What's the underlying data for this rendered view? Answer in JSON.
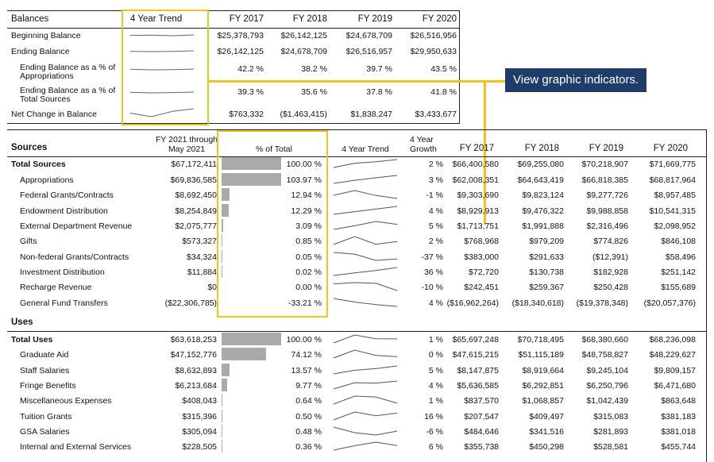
{
  "balances": {
    "title": "Balances",
    "trend_header": "4 Year Trend",
    "years": [
      "FY 2017",
      "FY 2018",
      "FY 2019",
      "FY 2020"
    ],
    "rows": [
      {
        "label": "Beginning Balance",
        "values": [
          "$25,378,793",
          "$26,142,125",
          "$24,678,709",
          "$26,516,956"
        ],
        "trend": [
          25378793,
          26142125,
          24678709,
          26516956
        ]
      },
      {
        "label": "Ending Balance",
        "values": [
          "$26,142,125",
          "$24,678,709",
          "$26,516,957",
          "$29,950,633"
        ],
        "trend": [
          26142125,
          24678709,
          26516957,
          29950633
        ]
      },
      {
        "label": "Ending Balance as a % of Appropriations",
        "values": [
          "42.2 %",
          "38.2 %",
          "39.7 %",
          "43.5 %"
        ],
        "trend": [
          42.2,
          38.2,
          39.7,
          43.5
        ]
      },
      {
        "label": "Ending Balance as a % of Total Sources",
        "values": [
          "39.3 %",
          "35.6 %",
          "37.8 %",
          "41.8 %"
        ],
        "trend": [
          39.3,
          35.6,
          37.8,
          41.8
        ]
      },
      {
        "label": "Net Change in Balance",
        "values": [
          "$763,332",
          "($1,463,415)",
          "$1,838,247",
          "$3,433,677"
        ],
        "trend": [
          763332,
          -1463415,
          1838247,
          3433677
        ]
      }
    ]
  },
  "callout": {
    "text": "View graphic indicators."
  },
  "detail": {
    "col_ytd": "FY 2021 through May 2021",
    "col_pct": "% of Total",
    "col_trend": "4 Year Trend",
    "col_growth": "4 Year Growth",
    "years": [
      "FY 2017",
      "FY 2018",
      "FY 2019",
      "FY 2020"
    ],
    "sources": {
      "title": "Sources",
      "rows": [
        {
          "label": "Total Sources",
          "ytd": "$67,172,411",
          "pct": "100.00 %",
          "pct_value": 100.0,
          "growth": "2 %",
          "values": [
            "$66,400,580",
            "$69,255,080",
            "$70,218,907",
            "$71,669,775"
          ],
          "trend": [
            66400580,
            69255080,
            70218907,
            71669775
          ]
        },
        {
          "label": "Appropriations",
          "ytd": "$69,836,585",
          "pct": "103.97 %",
          "pct_value": 103.97,
          "growth": "3 %",
          "values": [
            "$62,008,351",
            "$64,643,419",
            "$66,818,385",
            "$68,817,964"
          ],
          "trend": [
            62008351,
            64643419,
            66818385,
            68817964
          ]
        },
        {
          "label": "Federal Grants/Contracts",
          "ytd": "$8,692,450",
          "pct": "12.94 %",
          "pct_value": 12.94,
          "growth": "-1 %",
          "values": [
            "$9,303,690",
            "$9,823,124",
            "$9,277,726",
            "$8,957,485"
          ],
          "trend": [
            9303690,
            9823124,
            9277726,
            8957485
          ]
        },
        {
          "label": "Endowment Distribution",
          "ytd": "$8,254,849",
          "pct": "12.29 %",
          "pct_value": 12.29,
          "growth": "4 %",
          "values": [
            "$8,929,913",
            "$9,476,322",
            "$9,988,858",
            "$10,541,315"
          ],
          "trend": [
            8929913,
            9476322,
            9988858,
            10541315
          ]
        },
        {
          "label": "External Department Revenue",
          "ytd": "$2,075,777",
          "pct": "3.09 %",
          "pct_value": 3.09,
          "growth": "5 %",
          "values": [
            "$1,713,751",
            "$1,991,888",
            "$2,316,496",
            "$2,098,952"
          ],
          "trend": [
            1713751,
            1991888,
            2316496,
            2098952
          ]
        },
        {
          "label": "Gifts",
          "ytd": "$573,327",
          "pct": "0.85 %",
          "pct_value": 0.85,
          "growth": "2 %",
          "values": [
            "$768,968",
            "$979,209",
            "$774,826",
            "$846,108"
          ],
          "trend": [
            768968,
            979209,
            774826,
            846108
          ]
        },
        {
          "label": "Non-federal Grants/Contracts",
          "ytd": "$34,324",
          "pct": "0.05 %",
          "pct_value": 0.05,
          "growth": "-37 %",
          "values": [
            "$383,000",
            "$291,633",
            "($12,391)",
            "$58,496"
          ],
          "trend": [
            383000,
            291633,
            -12391,
            58496
          ]
        },
        {
          "label": "Investment Distribution",
          "ytd": "$11,884",
          "pct": "0.02 %",
          "pct_value": 0.02,
          "growth": "36 %",
          "values": [
            "$72,720",
            "$130,738",
            "$182,928",
            "$251,142"
          ],
          "trend": [
            72720,
            130738,
            182928,
            251142
          ]
        },
        {
          "label": "Recharge Revenue",
          "ytd": "$0",
          "pct": "0.00 %",
          "pct_value": 0.0,
          "growth": "-10 %",
          "values": [
            "$242,451",
            "$259,367",
            "$250,428",
            "$155,689"
          ],
          "trend": [
            242451,
            259367,
            250428,
            155689
          ]
        },
        {
          "label": "General Fund Transfers",
          "ytd": "($22,306,785)",
          "pct": "-33.21 %",
          "pct_value": -33.21,
          "growth": "4 %",
          "values": [
            "($16,962,264)",
            "($18,340,618)",
            "($19,378,348)",
            "($20,057,376)"
          ],
          "trend": [
            -16962264,
            -18340618,
            -19378348,
            -20057376
          ]
        }
      ]
    },
    "uses": {
      "title": "Uses",
      "rows": [
        {
          "label": "Total Uses",
          "ytd": "$63,618,253",
          "pct": "100.00 %",
          "pct_value": 100.0,
          "growth": "1 %",
          "values": [
            "$65,697,248",
            "$70,718,495",
            "$68,380,660",
            "$68,236,098"
          ],
          "trend": [
            65697248,
            70718495,
            68380660,
            68236098
          ]
        },
        {
          "label": "Graduate Aid",
          "ytd": "$47,152,776",
          "pct": "74.12 %",
          "pct_value": 74.12,
          "growth": "0 %",
          "values": [
            "$47,615,215",
            "$51,115,189",
            "$48,758,827",
            "$48,229,627"
          ],
          "trend": [
            47615215,
            51115189,
            48758827,
            48229627
          ]
        },
        {
          "label": "Staff Salaries",
          "ytd": "$8,632,893",
          "pct": "13.57 %",
          "pct_value": 13.57,
          "growth": "5 %",
          "values": [
            "$8,147,875",
            "$8,919,664",
            "$9,245,104",
            "$9,809,157"
          ],
          "trend": [
            8147875,
            8919664,
            9245104,
            9809157
          ]
        },
        {
          "label": "Fringe Benefits",
          "ytd": "$6,213,684",
          "pct": "9.77 %",
          "pct_value": 9.77,
          "growth": "4 %",
          "values": [
            "$5,636,585",
            "$6,292,851",
            "$6,250,796",
            "$6,471,680"
          ],
          "trend": [
            5636585,
            6292851,
            6250796,
            6471680
          ]
        },
        {
          "label": "Miscellaneous Expenses",
          "ytd": "$408,043",
          "pct": "0.64 %",
          "pct_value": 0.64,
          "growth": "1 %",
          "values": [
            "$837,570",
            "$1,068,857",
            "$1,042,439",
            "$863,648"
          ],
          "trend": [
            837570,
            1068857,
            1042439,
            863648
          ]
        },
        {
          "label": "Tuition Grants",
          "ytd": "$315,396",
          "pct": "0.50 %",
          "pct_value": 0.5,
          "growth": "16 %",
          "values": [
            "$207,547",
            "$409,497",
            "$315,083",
            "$381,183"
          ],
          "trend": [
            207547,
            409497,
            315083,
            381183
          ]
        },
        {
          "label": "GSA Salaries",
          "ytd": "$305,094",
          "pct": "0.48 %",
          "pct_value": 0.48,
          "growth": "-6 %",
          "values": [
            "$484,646",
            "$341,516",
            "$281,893",
            "$381,018"
          ],
          "trend": [
            484646,
            341516,
            281893,
            381018
          ]
        },
        {
          "label": "Internal and External Services",
          "ytd": "$228,505",
          "pct": "0.36 %",
          "pct_value": 0.36,
          "growth": "6 %",
          "values": [
            "$355,738",
            "$450,298",
            "$528,581",
            "$455,744"
          ],
          "trend": [
            355738,
            450298,
            528581,
            455744
          ]
        }
      ]
    }
  }
}
